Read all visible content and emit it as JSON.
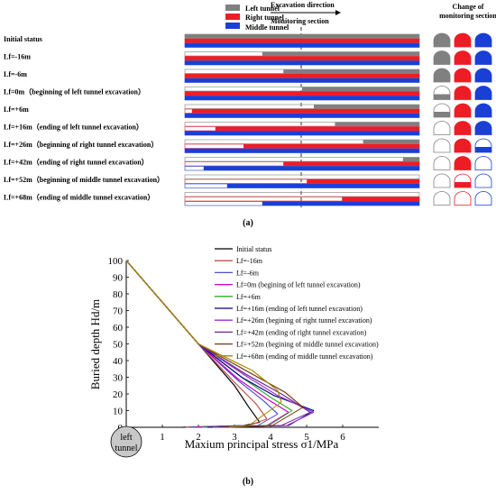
{
  "legend_top": {
    "left_tunnel": "Left tunnel",
    "right_tunnel": "Right tunnel",
    "middle_tunnel": "Middle tunnel",
    "excavation_direction": "Excavation direction",
    "monitoring_section": "Monitoring section",
    "change_title_1": "Change of",
    "change_title_2": "monitoring section"
  },
  "colors": {
    "left": "#808080",
    "right": "#ee1c25",
    "middle": "#1a3fd6"
  },
  "rows": [
    {
      "label": "Initial status",
      "left": 0,
      "right": 0,
      "middle": 0,
      "sec": [
        "full",
        "full",
        "full"
      ]
    },
    {
      "label": "Lf=-16m",
      "left": 0.33,
      "right": 0,
      "middle": 0,
      "sec": [
        "full",
        "full",
        "full"
      ]
    },
    {
      "label": "Lf=-6m",
      "left": 0.42,
      "right": 0,
      "middle": 0,
      "sec": [
        "full",
        "full",
        "full"
      ]
    },
    {
      "label": "Lf=0m（beginning of left tunnel excavation）",
      "left": 0.5,
      "right": 0,
      "middle": 0,
      "sec": [
        "half",
        "full",
        "full"
      ]
    },
    {
      "label": "Lf=+6m",
      "left": 0.55,
      "right": 0.03,
      "middle": 0,
      "sec": [
        "half",
        "full",
        "full"
      ]
    },
    {
      "label": "Lf=+16m（ending of left tunnel excavation）",
      "left": 0.64,
      "right": 0.13,
      "middle": 0,
      "sec": [
        "empty",
        "full",
        "full"
      ]
    },
    {
      "label": "Lf=+26m（beginning of right tunnel excavation）",
      "left": 0.76,
      "right": 0.25,
      "middle": 0,
      "sec": [
        "empty",
        "full",
        "half"
      ]
    },
    {
      "label": "Lf=+42m（ending of right tunnel excavation）",
      "left": 0.93,
      "right": 0.42,
      "middle": 0.08,
      "sec": [
        "empty",
        "full",
        "empty"
      ]
    },
    {
      "label": "Lf=+52m（beginning of middle tunnel excavation）",
      "left": 1.0,
      "right": 0.52,
      "middle": 0.18,
      "sec": [
        "empty",
        "half",
        "empty"
      ]
    },
    {
      "label": "Lf=+68m（ending of middle tunnel excavation）",
      "left": 1.0,
      "right": 0.67,
      "middle": 0.33,
      "sec": [
        "empty",
        "empty",
        "empty"
      ]
    }
  ],
  "caption_a": "(a)",
  "caption_b": "(b)",
  "chart_data": {
    "type": "line",
    "xlabel": "Maxium principal stress σ1/MPa",
    "ylabel": "Buried depth Hd/m",
    "xlim": [
      0,
      7
    ],
    "ylim": [
      0,
      100
    ],
    "xticks": [
      "0",
      "1",
      "2",
      "3",
      "4",
      "5",
      "6"
    ],
    "yticks": [
      "0",
      "10",
      "20",
      "30",
      "40",
      "50",
      "60",
      "70",
      "80",
      "90",
      "100"
    ],
    "tunnel_label_1": "left",
    "tunnel_label_2": "tunnel",
    "series": [
      {
        "name": "Initial status",
        "color": "#000000",
        "x": [
          0,
          1.0,
          2.0,
          3.0,
          3.4,
          3.7
        ],
        "y": [
          100,
          75,
          50,
          25,
          12,
          3
        ]
      },
      {
        "name": "Lf=-16m",
        "color": "#c0504d",
        "x": [
          0,
          1.0,
          2.0,
          3.0,
          3.6,
          3.9
        ],
        "y": [
          100,
          75,
          50,
          27,
          14,
          5
        ]
      },
      {
        "name": "Lf=-6m",
        "color": "#4f4fcc",
        "x": [
          0,
          1.0,
          2.0,
          3.1,
          3.8,
          4.2
        ],
        "y": [
          100,
          75,
          50,
          28,
          16,
          8
        ]
      },
      {
        "name": "Lf=0m (begining of left tunnel excavation)",
        "color": "#cc00cc",
        "x": [
          0,
          1.0,
          2.0,
          3.1,
          3.9,
          4.5
        ],
        "y": [
          100,
          75,
          50,
          29,
          17,
          9
        ]
      },
      {
        "name": "Lf=+6m",
        "color": "#33aa33",
        "x": [
          0,
          1.0,
          2.0,
          3.2,
          4.0,
          4.6
        ],
        "y": [
          100,
          75,
          50,
          30,
          18,
          10
        ]
      },
      {
        "name": "Lf=+16m (ending of left tunnel excavation)",
        "color": "#000080",
        "x": [
          0,
          1.0,
          2.0,
          3.2,
          4.1,
          5.2
        ],
        "y": [
          100,
          75,
          50,
          30,
          19,
          10
        ]
      },
      {
        "name": "Lf=+26m (begining of right tunnel excavation)",
        "color": "#9b30d0",
        "x": [
          0,
          1.0,
          2.0,
          3.3,
          4.2,
          5.2
        ],
        "y": [
          100,
          75,
          50,
          31,
          19,
          9
        ]
      },
      {
        "name": "Lf=+42m (ending of right tunnel excavation)",
        "color": "#6a2a9a",
        "x": [
          0,
          1.0,
          2.0,
          3.3,
          4.3,
          5.1
        ],
        "y": [
          100,
          75,
          50,
          32,
          20,
          9
        ]
      },
      {
        "name": "Lf=+52m (begining of middle tunnel excavation)",
        "color": "#7a3b10",
        "x": [
          0,
          1.0,
          2.0,
          3.4,
          4.4,
          4.9
        ],
        "y": [
          100,
          75,
          50,
          33,
          21,
          12
        ]
      },
      {
        "name": "Lf=+68m (ending of middle tunnel excavation)",
        "color": "#a08a00",
        "x": [
          0,
          1.0,
          2.0,
          3.5,
          4.2,
          4.3
        ],
        "y": [
          100,
          75,
          50,
          34,
          22,
          15
        ]
      }
    ]
  }
}
